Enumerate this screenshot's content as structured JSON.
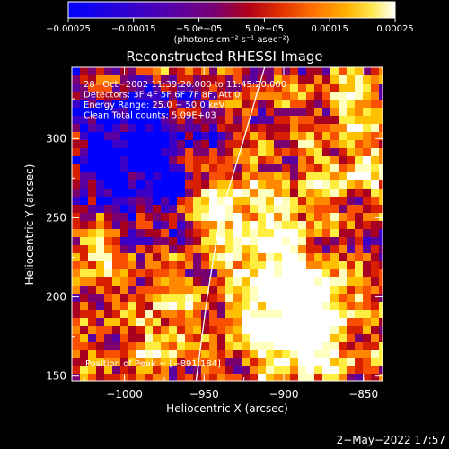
{
  "chart_data": {
    "type": "heatmap",
    "title": "Reconstructed RHESSI Image",
    "xlabel": "Heliocentric X (arcsec)",
    "ylabel": "Heliocentric Y (arcsec)",
    "xlim": [
      -1033,
      -838
    ],
    "ylim": [
      147,
      345
    ],
    "x_ticks": [
      -1000,
      -950,
      -900,
      -850
    ],
    "x_tick_labels": [
      "−1000",
      "−950",
      "−900",
      "−850"
    ],
    "y_ticks": [
      150,
      200,
      250,
      300
    ],
    "y_tick_labels": [
      "150",
      "200",
      "250",
      "300"
    ],
    "colorbar": {
      "range": [
        -0.00025,
        0.00025
      ],
      "ticks": [
        -0.00025,
        -0.00015,
        -5e-05,
        5e-05,
        0.00015,
        0.00025
      ],
      "tick_labels": [
        "−0.00025",
        "−0.00015",
        "−5.0e−05",
        "5.0e−05",
        "0.00015",
        "0.00025"
      ],
      "unit_label": "(photons cm⁻² s⁻¹ asec⁻²)",
      "colors": [
        "#0000ff",
        "#3a00c8",
        "#5a00a0",
        "#7a0070",
        "#a80020",
        "#d82000",
        "#f85000",
        "#ff8800",
        "#ffc000",
        "#ffee40",
        "#ffffc0",
        "#ffffff"
      ]
    },
    "annotations": [
      "28−Oct−2002 11:39:20.000 to 11:45:20.000",
      "Detectors: 3F 4F 5F 6F 7F 8F, Att 0",
      "Energy Range: 25.0 − 50.0 keV",
      "Clean    Total counts: 5.09E+03"
    ],
    "peak_label": "Position of Peak = [−891,184]",
    "peak_position": [
      -891,
      184
    ],
    "limb_curve": [
      [
        -955,
        147
      ],
      [
        -948,
        200
      ],
      [
        -940,
        250
      ],
      [
        -925,
        300
      ],
      [
        -912,
        345
      ]
    ]
  },
  "footer": {
    "timestamp": "2−May−2022 17:57"
  }
}
